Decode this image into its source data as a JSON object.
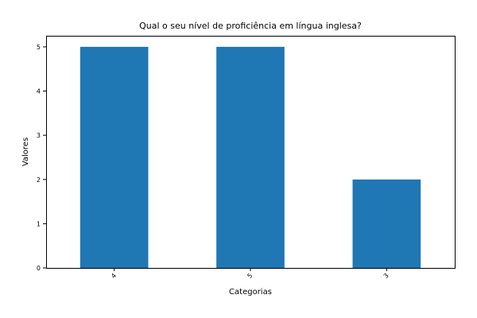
{
  "chart_data": {
    "type": "bar",
    "title": "Qual o seu nível de proficiência em língua inglesa?",
    "xlabel": "Categorias",
    "ylabel": "Valores",
    "categories": [
      "4",
      "5",
      "3"
    ],
    "values": [
      5,
      5,
      2
    ],
    "ylim": [
      0,
      5.25
    ],
    "yticks": [
      0,
      1,
      2,
      3,
      4,
      5
    ],
    "bar_color": "#1f77b4",
    "grid": false,
    "legend": "none",
    "x_tick_rotation_deg": 45
  }
}
